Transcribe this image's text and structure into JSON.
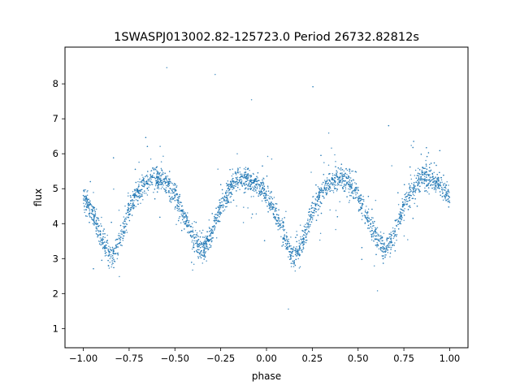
{
  "chart_data": {
    "type": "scatter",
    "title": "1SWASPJ013002.82-125723.0 Period 26732.82812s",
    "xlabel": "phase",
    "ylabel": "flux",
    "xlim": [
      -1.1,
      1.1
    ],
    "ylim": [
      0.45,
      9.05
    ],
    "xticks": [
      "−1.00",
      "−0.75",
      "−0.50",
      "−0.25",
      "0.00",
      "0.25",
      "0.50",
      "0.75",
      "1.00"
    ],
    "yticks": [
      "1",
      "2",
      "3",
      "4",
      "5",
      "6",
      "7",
      "8"
    ],
    "grid": false,
    "legend": "none",
    "point_color": "#1f77b4",
    "series": [
      {
        "x": [
          -1.0,
          -0.95,
          -0.9,
          -0.85,
          -0.8,
          -0.75,
          -0.7,
          -0.65,
          -0.6,
          -0.55,
          -0.5,
          -0.45,
          -0.4,
          -0.35,
          -0.3,
          -0.25,
          -0.2,
          -0.15,
          -0.1,
          -0.05,
          0.0,
          0.05,
          0.1,
          0.15,
          0.2,
          0.25,
          0.3,
          0.35,
          0.4,
          0.45,
          0.5,
          0.55,
          0.6,
          0.65,
          0.7,
          0.75,
          0.8,
          0.85,
          0.9,
          0.95,
          1.0
        ],
        "y": [
          4.8,
          4.3,
          3.6,
          3.0,
          3.5,
          4.4,
          4.9,
          5.2,
          5.3,
          5.2,
          4.8,
          4.2,
          3.6,
          3.2,
          3.7,
          4.5,
          5.0,
          5.3,
          5.3,
          5.1,
          4.8,
          4.3,
          3.6,
          3.0,
          3.5,
          4.4,
          4.9,
          5.2,
          5.3,
          5.2,
          4.8,
          4.2,
          3.6,
          3.2,
          3.7,
          4.5,
          5.0,
          5.3,
          5.3,
          5.1,
          4.8
        ]
      }
    ]
  }
}
